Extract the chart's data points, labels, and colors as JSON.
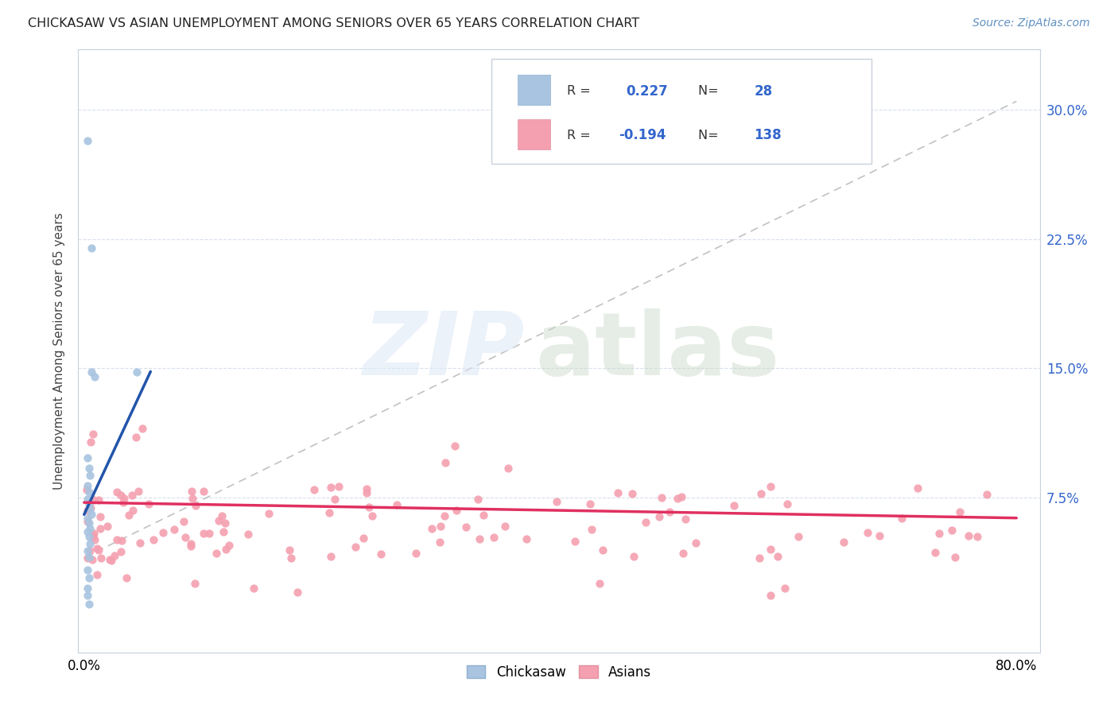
{
  "title": "CHICKASAW VS ASIAN UNEMPLOYMENT AMONG SENIORS OVER 65 YEARS CORRELATION CHART",
  "source": "Source: ZipAtlas.com",
  "ylabel": "Unemployment Among Seniors over 65 years",
  "ytick_values": [
    0.075,
    0.15,
    0.225,
    0.3
  ],
  "xlim": [
    -0.005,
    0.82
  ],
  "ylim": [
    -0.015,
    0.335
  ],
  "chickasaw_color": "#a8c4e0",
  "asian_color": "#f4a0b0",
  "chickasaw_line_color": "#2255aa",
  "asian_line_color": "#e03060",
  "diagonal_color": "#bbbbbb",
  "R_chickasaw": "0.227",
  "N_chickasaw": "28",
  "R_asian": "-0.194",
  "N_asian": "138",
  "legend_label_chickasaw": "Chickasaw",
  "legend_label_asian": "Asians",
  "stat_text_color": "#3366cc",
  "background_color": "#ffffff",
  "grid_color": "#d8e0ec",
  "spine_color": "#c8d0dc"
}
